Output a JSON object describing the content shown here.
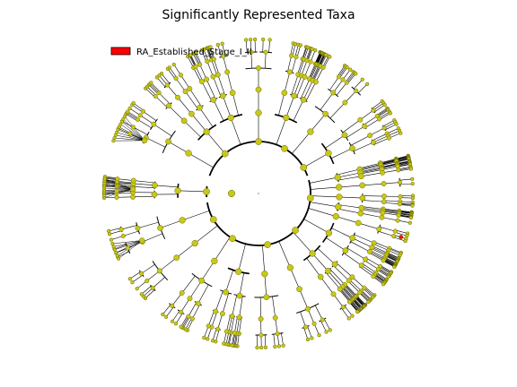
{
  "figure": {
    "title": "Significantly Represented Taxa"
  },
  "legend": {
    "items": [
      {
        "label": "RA_Established_Stage_I_II",
        "color": "#ff0000"
      }
    ]
  },
  "colors": {
    "node_fill": "#c8c81a",
    "node_stroke": "#6b6b00",
    "highlight": "#ff0000",
    "branch": "#000000",
    "background": "#ffffff"
  },
  "cladogram": {
    "type": "circular-cladogram",
    "center_node": "root",
    "highlighted_clade_count": 1
  }
}
